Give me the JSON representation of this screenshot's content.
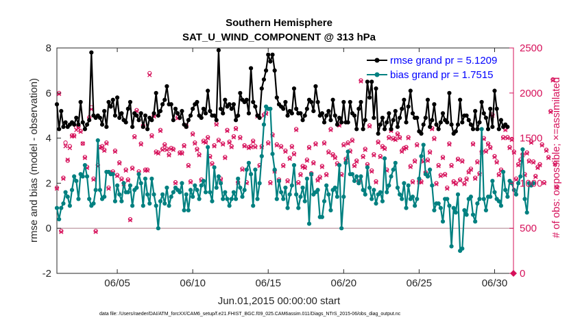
{
  "chart_data": {
    "type": "line",
    "title": "Southern Hemisphere",
    "subtitle": "SAT_U_WIND_COMPONENT @ 313 hPa",
    "xlabel": "Jun.01,2015 00:00:00 start",
    "ylabel_left": "rmse and bias (model - observation)",
    "ylabel_right": "# of obs: o=possible; ×=assimilated",
    "footnote": "data file: /Users/raeder/DAI/ATM_forcXX/CAM6_setup/f.e21.FHIST_BGC.f09_025.CAM6assim.011/Diags_NTrS_2015-06/obs_diag_output.nc",
    "x_range": [
      1.0,
      31.25
    ],
    "xticks": [
      5,
      10,
      15,
      20,
      25,
      30
    ],
    "xtick_labels": [
      "06/05",
      "06/10",
      "06/15",
      "06/20",
      "06/25",
      "06/30"
    ],
    "ylim_left": [
      -2,
      8
    ],
    "yticks_left": [
      "-2",
      "0",
      "2",
      "4",
      "6",
      "8"
    ],
    "ylim_right": [
      0,
      2500
    ],
    "yticks_right": [
      "0",
      "500",
      "1000",
      "1500",
      "2000",
      "2500"
    ],
    "zero_line": 0,
    "legend": [
      {
        "name": "rmse grand pr = 5.1209",
        "color": "#000000"
      },
      {
        "name": "bias grand pr = 1.7515",
        "color": "#008080"
      }
    ],
    "colors": {
      "rmse": "#000000",
      "bias": "#008080",
      "obs": "#d6105a",
      "zero": "#c8a8b0",
      "axis": "#262626"
    },
    "series": [
      {
        "name": "rmse",
        "values": [
          5.5,
          4.4,
          5.2,
          4.5,
          4.7,
          4.5,
          4.6,
          4.7,
          4.6,
          4.9,
          4.6,
          5.6,
          4.7,
          4.4,
          4.6,
          4.8,
          7.8,
          5.0,
          4.9,
          5.0,
          4.9,
          4.6,
          5.2,
          4.5,
          5.6,
          5.4,
          5.7,
          5.0,
          5.8,
          4.9,
          5.1,
          4.8,
          4.7,
          5.3,
          5.6,
          4.5,
          5.1,
          5.0,
          4.8,
          5.1,
          4.5,
          5.0,
          4.4,
          4.9,
          4.8,
          5.1,
          6.0,
          5.0,
          5.2,
          5.5,
          5.7,
          6.3,
          5.5,
          5.5,
          4.8,
          5.3,
          5.1,
          4.9,
          5.2,
          4.6,
          4.5,
          4.8,
          5.0,
          5.3,
          5.5,
          5.6,
          5.0,
          4.9,
          5.3,
          5.1,
          6.1,
          5.2,
          5.0,
          5.0,
          4.8,
          7.9,
          5.3,
          5.1,
          5.7,
          5.4,
          5.5,
          5.3,
          5.5,
          4.8,
          5.0,
          6.0,
          5.7,
          5.6,
          5.7,
          5.1,
          7.1,
          5.6,
          5.4,
          5.0,
          4.9,
          6.2,
          6.6,
          7.0,
          7.7,
          7.4,
          7.7,
          7.0,
          5.8,
          5.5,
          5.4,
          5.3,
          5.6,
          5.0,
          5.2,
          5.1,
          6.2,
          5.3,
          5.1,
          5.1,
          4.8,
          5.0,
          5.3,
          5.7,
          5.6,
          5.2,
          6.3,
          5.6,
          5.0,
          5.1,
          4.7,
          5.0,
          5.2,
          4.8,
          5.7,
          5.0,
          4.6,
          4.9,
          4.7,
          5.6,
          4.7,
          4.7,
          5.6,
          5.1,
          5.0,
          4.4,
          5.3,
          5.6,
          4.4,
          4.8,
          6.5,
          5.8,
          6.5,
          4.9,
          6.2,
          4.2,
          4.6,
          4.9,
          4.4,
          4.7,
          5.1,
          4.4,
          4.8,
          5.2,
          4.5,
          4.9,
          5.3,
          5.7,
          4.7,
          5.4,
          6.1,
          5.1,
          4.9,
          4.9,
          4.3,
          4.2,
          4.6,
          4.9,
          5.7,
          4.5,
          4.8,
          5.5,
          4.6,
          4.4,
          4.7,
          5.1,
          4.8,
          4.7,
          6.0,
          4.6,
          4.2,
          4.3,
          4.6,
          5.7,
          4.7,
          5.0,
          5.0,
          4.8,
          4.6,
          4.4,
          5.2,
          4.4,
          4.7,
          5.6,
          5.1,
          4.9,
          4.4,
          5.3,
          4.5,
          6.1,
          5.3,
          4.4,
          4.8,
          4.5,
          4.6,
          4.5
        ]
      },
      {
        "name": "bias",
        "values": [
          0.9,
          0.4,
          0.9,
          1.1,
          1.6,
          1.4,
          1.0,
          1.7,
          2.3,
          2.1,
          1.3,
          2.4,
          2.3,
          2.8,
          2.3,
          1.3,
          1.0,
          1.1,
          1.7,
          3.9,
          1.7,
          1.3,
          1.4,
          2.5,
          2.5,
          2.4,
          2.4,
          1.2,
          1.9,
          1.5,
          1.2,
          2.0,
          1.6,
          1.6,
          1.9,
          1.0,
          1.7,
          1.8,
          2.4,
          2.0,
          1.0,
          2.2,
          1.5,
          1.1,
          2.2,
          1.5,
          1.0,
          0.0,
          1.2,
          1.5,
          1.1,
          1.8,
          1.0,
          1.4,
          1.6,
          1.8,
          1.7,
          1.6,
          2.0,
          0.8,
          1.5,
          0.8,
          1.7,
          1.4,
          1.9,
          1.7,
          1.3,
          1.9,
          2.1,
          1.6,
          3.6,
          1.6,
          1.2,
          2.7,
          1.8,
          2.3,
          2.0,
          1.3,
          1.6,
          1.3,
          1.0,
          1.3,
          1.6,
          1.3,
          2.2,
          1.8,
          1.4,
          1.7,
          2.6,
          2.9,
          2.4,
          1.0,
          2.6,
          1.3,
          2.0,
          3.2,
          4.6,
          5.4,
          5.3,
          5.3,
          3.3,
          2.6,
          1.3,
          2.1,
          1.6,
          1.3,
          1.8,
          0.9,
          1.5,
          1.9,
          2.8,
          1.5,
          0.9,
          1.4,
          1.8,
          1.2,
          2.2,
          0.2,
          2.4,
          1.5,
          1.6,
          1.7,
          0.5,
          0.5,
          1.2,
          1.9,
          1.5,
          0.8,
          1.7,
          1.8,
          1.4,
          2.8,
          0.0,
          1.4,
          2.9,
          3.4,
          2.4,
          2.4,
          2.1,
          2.3,
          2.0,
          2.3,
          1.7,
          1.5,
          2.7,
          1.8,
          1.3,
          1.7,
          1.1,
          1.5,
          1.6,
          1.2,
          3.1,
          1.6,
          1.9,
          2.3,
          2.6,
          2.9,
          1.8,
          1.5,
          1.3,
          2.0,
          0.9,
          1.9,
          1.3,
          1.4,
          1.0,
          1.3,
          2.2,
          3.2,
          3.7,
          2.4,
          2.3,
          2.6,
          1.9,
          0.8,
          1.1,
          1.1,
          0.9,
          0.3,
          1.3,
          1.3,
          1.0,
          -0.8,
          0.9,
          0.7,
          1.5,
          -1.0,
          -0.9,
          0.8,
          0.6,
          1.3,
          1.4,
          0.6,
          0.3,
          1.1,
          1.3,
          4.4,
          1.3,
          0.8,
          1.4,
          1.4,
          2.1,
          1.6,
          1.3,
          1.2,
          1.0,
          2.5,
          1.7,
          1.4,
          2.1,
          2.0,
          1.7,
          1.5,
          2.0,
          2.3,
          3.5,
          1.3,
          0.7,
          2.0,
          1.9,
          2.0
        ]
      },
      {
        "name": "obs_possible",
        "values": [
          950,
          2000,
          470,
          1060,
          1450,
          1250,
          1410,
          1530,
          1530,
          1620,
          1630,
          1580,
          1440,
          1290,
          1180,
          1730,
          1840,
          1050,
          470,
          1200,
          1400,
          1410,
          1370,
          1450,
          950,
          1120,
          1130,
          1360,
          1090,
          1230,
          1050,
          1000,
          1150,
          1040,
          600,
          1170,
          1520,
          1810,
          1130,
          1440,
          1640,
          1150,
          1150,
          2220,
          1530,
          1750,
          1350,
          1340,
          1590,
          1380,
          1430,
          1380,
          1320,
          1390,
          1380,
          1010,
          1730,
          1340,
          1340,
          1420,
          1640,
          1200,
          1020,
          1550,
          1450,
          1380,
          1320,
          1040,
          1470,
          1460,
          1510,
          1300,
          1220,
          1420,
          1660,
          1480,
          1050,
          1440,
          1290,
          1590,
          1460,
          1410,
          1520,
          1610,
          1010,
          1510,
          1160,
          1420,
          1010,
          1400,
          1410,
          1470,
          1410,
          1750,
          1200,
          1410,
          1760,
          1780,
          1450,
          1010,
          1540,
          1140,
          1430,
          1040,
          1410,
          1200,
          1360,
          1030,
          1280,
          1410,
          1330,
          1600,
          1010,
          1100,
          1190,
          1180,
          1260,
          1400,
          1110,
          1230,
          1440,
          1040,
          1070,
          1190,
          1450,
          1100,
          1350,
          1600,
          1320,
          1290,
          1220,
          1650,
          1100,
          1430,
          1270,
          1450,
          1360,
          1480,
          1200,
          1250,
          1020,
          2140,
          1300,
          1380,
          1210,
          1640,
          1140,
          1320,
          1020,
          1460,
          1300,
          1410,
          1390,
          1150,
          1510,
          1590,
          1500,
          1490,
          1550,
          1510,
          1360,
          1390,
          1400,
          1510,
          1190,
          1020,
          1250,
          1430,
          1020,
          1020,
          1250,
          1120,
          1260,
          1350,
          1610,
          1500,
          1000,
          1200,
          1090,
          1290,
          1100,
          950,
          1440,
          1200,
          1020,
          1000,
          1270,
          1040,
          1250,
          1000,
          1050,
          1130,
          1160,
          1440,
          1060,
          1240,
          1110,
          1350,
          1500,
          1360,
          1440,
          1400,
          1760,
          1300,
          1240,
          1100,
          1150,
          1510,
          1600,
          1510,
          1400,
          1490,
          1350,
          1050,
          1210,
          1260,
          1320,
          1100,
          1340,
          1250,
          1460,
          1240,
          1080,
          1180,
          1210,
          1430,
          1010,
          1370,
          1290,
          1800,
          2150,
          1220,
          960
        ]
      },
      {
        "name": "obs_assimilated",
        "values": [
          940,
          1990,
          460,
          1050,
          1410,
          1260,
          1390,
          1520,
          1520,
          1590,
          1610,
          1570,
          1440,
          1280,
          1170,
          1710,
          1820,
          1040,
          460,
          1190,
          1390,
          1400,
          1360,
          1440,
          940,
          1110,
          1120,
          1350,
          1080,
          1220,
          1040,
          990,
          1140,
          1030,
          590,
          1160,
          1510,
          1800,
          1120,
          1430,
          1630,
          1140,
          1140,
          2200,
          1520,
          1740,
          1340,
          1330,
          1580,
          1370,
          1420,
          1370,
          1310,
          1380,
          1370,
          1000,
          1720,
          1330,
          1330,
          1410,
          1630,
          1190,
          1010,
          1540,
          1440,
          1370,
          1310,
          1030,
          1460,
          1450,
          1500,
          1290,
          1210,
          1410,
          1650,
          1470,
          1040,
          1430,
          1280,
          1580,
          1450,
          1400,
          1510,
          1600,
          1000,
          1500,
          1150,
          1410,
          1000,
          1390,
          1400,
          1460,
          1400,
          1740,
          1190,
          1400,
          1750,
          1770,
          1440,
          1000,
          1530,
          1130,
          1420,
          1030,
          1400,
          1190,
          1350,
          1020,
          1270,
          1400,
          1320,
          1590,
          1000,
          1090,
          1180,
          1170,
          1250,
          1390,
          1100,
          1220,
          1430,
          1030,
          1060,
          1180,
          1440,
          1090,
          1340,
          1590,
          1310,
          1280,
          1210,
          1640,
          1090,
          1420,
          1260,
          1440,
          1350,
          1470,
          1190,
          1240,
          1010,
          2130,
          1290,
          1370,
          1200,
          1630,
          1130,
          1310,
          1010,
          1450,
          1290,
          1400,
          1380,
          1140,
          1500,
          1580,
          1490,
          1480,
          1540,
          1500,
          1350,
          1380,
          1390,
          1500,
          1180,
          1010,
          1240,
          1420,
          1010,
          1010,
          1240,
          1110,
          1250,
          1340,
          1600,
          1490,
          990,
          1190,
          1080,
          1280,
          1090,
          940,
          1430,
          1190,
          1010,
          990,
          1260,
          1030,
          1240,
          990,
          1040,
          1120,
          1150,
          1430,
          1050,
          1230,
          1100,
          1340,
          1490,
          1350,
          1430,
          1390,
          1750,
          1290,
          1230,
          1090,
          1140,
          1500,
          1590,
          1500,
          1390,
          1480,
          1340,
          1040,
          1200,
          1250,
          1310,
          1090,
          1330,
          1240,
          1450,
          1230,
          1070,
          1170,
          1200,
          1420,
          1000,
          1360,
          1280,
          1790,
          2140,
          1210,
          950
        ]
      }
    ]
  }
}
